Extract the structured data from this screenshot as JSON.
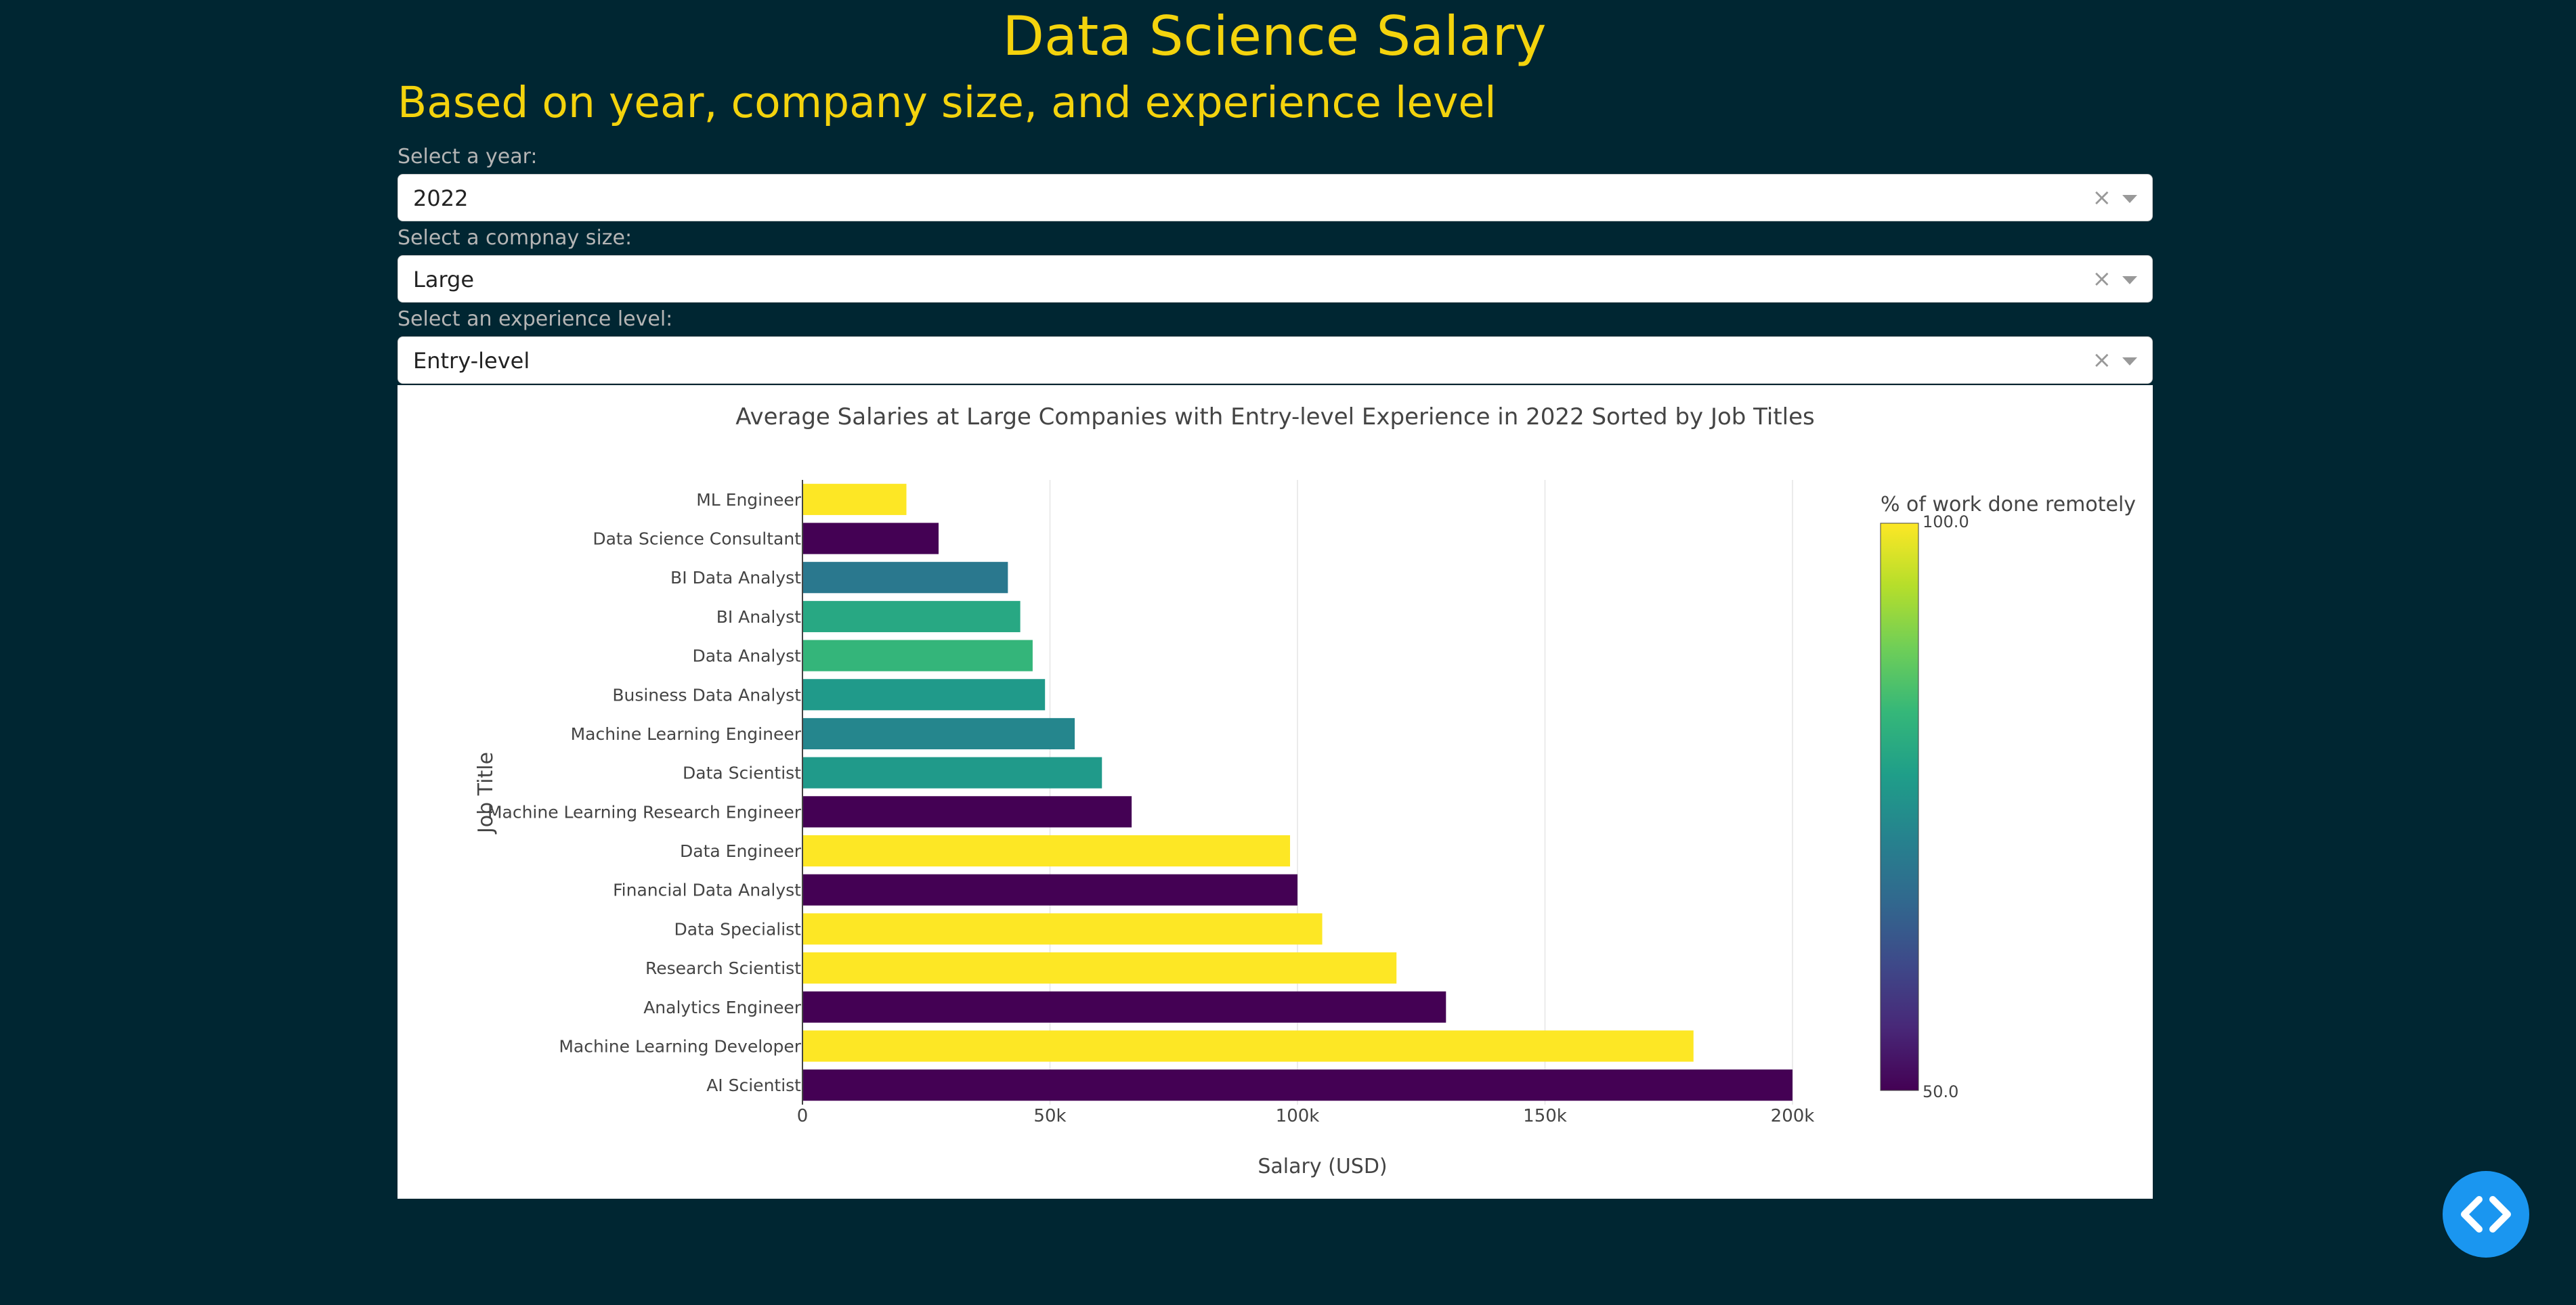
{
  "page": {
    "title": "Data Science Salary",
    "subtitle": "Based on year, company size, and experience level"
  },
  "filters": {
    "year": {
      "label": "Select a year:",
      "value": "2022"
    },
    "company_size": {
      "label": "Select a compnay size:",
      "value": "Large"
    },
    "experience": {
      "label": "Select an experience level:",
      "value": "Entry-level"
    },
    "clear_glyph": "×"
  },
  "colors": {
    "background": "#002632",
    "accent": "#f4d30d",
    "code_button": "#1a96f0"
  },
  "chart_data": {
    "type": "bar",
    "orientation": "horizontal",
    "title": "Average Salaries at Large Companies with Entry-level Experience in 2022 Sorted by Job Titles",
    "xlabel": "Salary (USD)",
    "ylabel": "Job Title",
    "xlim": [
      0,
      200000
    ],
    "xticks": [
      0,
      50000,
      100000,
      150000,
      200000
    ],
    "xtick_labels": [
      "0",
      "50k",
      "100k",
      "150k",
      "200k"
    ],
    "grid": true,
    "categories": [
      "ML Engineer",
      "Data Science Consultant",
      "BI Data Analyst",
      "BI Analyst",
      "Data Analyst",
      "Business Data Analyst",
      "Machine Learning Engineer",
      "Data Scientist",
      "Machine Learning Research Engineer",
      "Data Engineer",
      "Financial Data Analyst",
      "Data Specialist",
      "Research Scientist",
      "Analytics Engineer",
      "Machine Learning Developer",
      "AI Scientist"
    ],
    "values": [
      21000,
      27500,
      41500,
      44000,
      46500,
      49000,
      55000,
      60500,
      66500,
      98500,
      100000,
      105000,
      120000,
      130000,
      180000,
      200000
    ],
    "color_values": [
      100,
      50,
      70,
      80,
      83,
      77,
      73,
      77,
      50,
      100,
      50,
      100,
      100,
      50,
      100,
      50
    ],
    "colorscale": "Viridis",
    "colorbar": {
      "title": "% of work done remotely",
      "min": 50,
      "max": 100,
      "tick_labels": [
        "100.0",
        "50.0"
      ]
    },
    "legend_position": "right"
  }
}
